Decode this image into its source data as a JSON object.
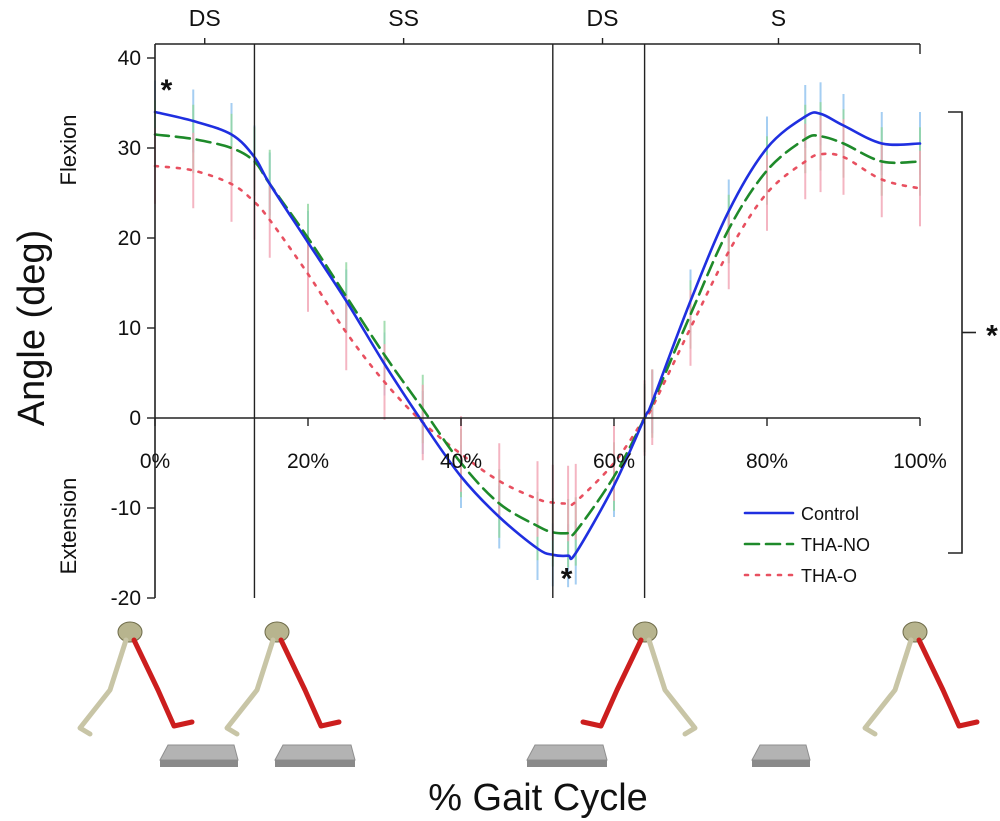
{
  "chart_data": {
    "type": "line",
    "xlabel": "% Gait Cycle",
    "ylabel": "Angle (deg)",
    "xlim": [
      0,
      100
    ],
    "ylim": [
      -20,
      40
    ],
    "x_ticks": [
      0,
      20,
      40,
      60,
      80,
      100
    ],
    "x_tick_labels": [
      "0%",
      "20%",
      "40%",
      "60%",
      "80%",
      "100%"
    ],
    "y_ticks": [
      40,
      30,
      20,
      10,
      0,
      -10,
      -20
    ],
    "y_tick_labels": [
      "40",
      "30",
      "20",
      "10",
      "0",
      "-10",
      "-20"
    ],
    "region_labels": {
      "flexion": "Flexion",
      "extension": "Extension"
    },
    "phases": [
      {
        "label": "DS",
        "center": 6.5
      },
      {
        "label": "SS",
        "center": 32.5
      },
      {
        "label": "DS",
        "center": 58.5
      },
      {
        "label": "S",
        "center": 81.5
      }
    ],
    "phase_dividers": [
      13,
      52,
      64
    ],
    "legend": {
      "position": "bottom-right"
    },
    "annotations": [
      {
        "text": "*",
        "x": 1.5,
        "y": 36.8
      },
      {
        "text": "*",
        "x": 53.8,
        "y": -17.5
      },
      {
        "text": "*",
        "side": "right",
        "y": 9.5
      }
    ],
    "x": [
      0,
      5,
      10,
      13,
      15,
      20,
      25,
      30,
      35,
      40,
      45,
      50,
      52,
      54,
      55,
      60,
      64,
      65,
      70,
      75,
      80,
      85,
      87,
      90,
      95,
      100
    ],
    "series": [
      {
        "name": "Control",
        "color": "#1f2fe0",
        "band_color": "#8fc3ef",
        "style": "solid",
        "values": [
          34,
          33,
          31.5,
          29,
          26,
          19.5,
          13,
          6,
          -0.5,
          -6.5,
          -11,
          -14.5,
          -15.2,
          -15.3,
          -15,
          -7.5,
          0,
          1.8,
          13,
          23,
          30,
          33.5,
          33.8,
          32.5,
          30.5,
          30.5
        ],
        "sd": 3.5
      },
      {
        "name": "THA-NO",
        "color": "#1e8a2a",
        "band_color": "#8fd6a0",
        "style": "dashed",
        "values": [
          31.5,
          31,
          30,
          28.5,
          26,
          20,
          13.5,
          7,
          1,
          -5,
          -9.5,
          -12,
          -12.7,
          -12.8,
          -12.6,
          -6.5,
          0,
          1.6,
          11.5,
          21,
          27.5,
          31,
          31.3,
          30.5,
          28.5,
          28.5
        ],
        "sd": 3.8
      },
      {
        "name": "THA-O",
        "color": "#e85060",
        "band_color": "#f2a3b3",
        "style": "dotted",
        "values": [
          28,
          27.5,
          26,
          24,
          22,
          16,
          9.5,
          4,
          -0.5,
          -4,
          -7,
          -9,
          -9.4,
          -9.5,
          -9.3,
          -5,
          0,
          1.2,
          10,
          18.5,
          25,
          28.5,
          29.3,
          29,
          26.5,
          25.5
        ],
        "sd": 4.2
      }
    ]
  }
}
